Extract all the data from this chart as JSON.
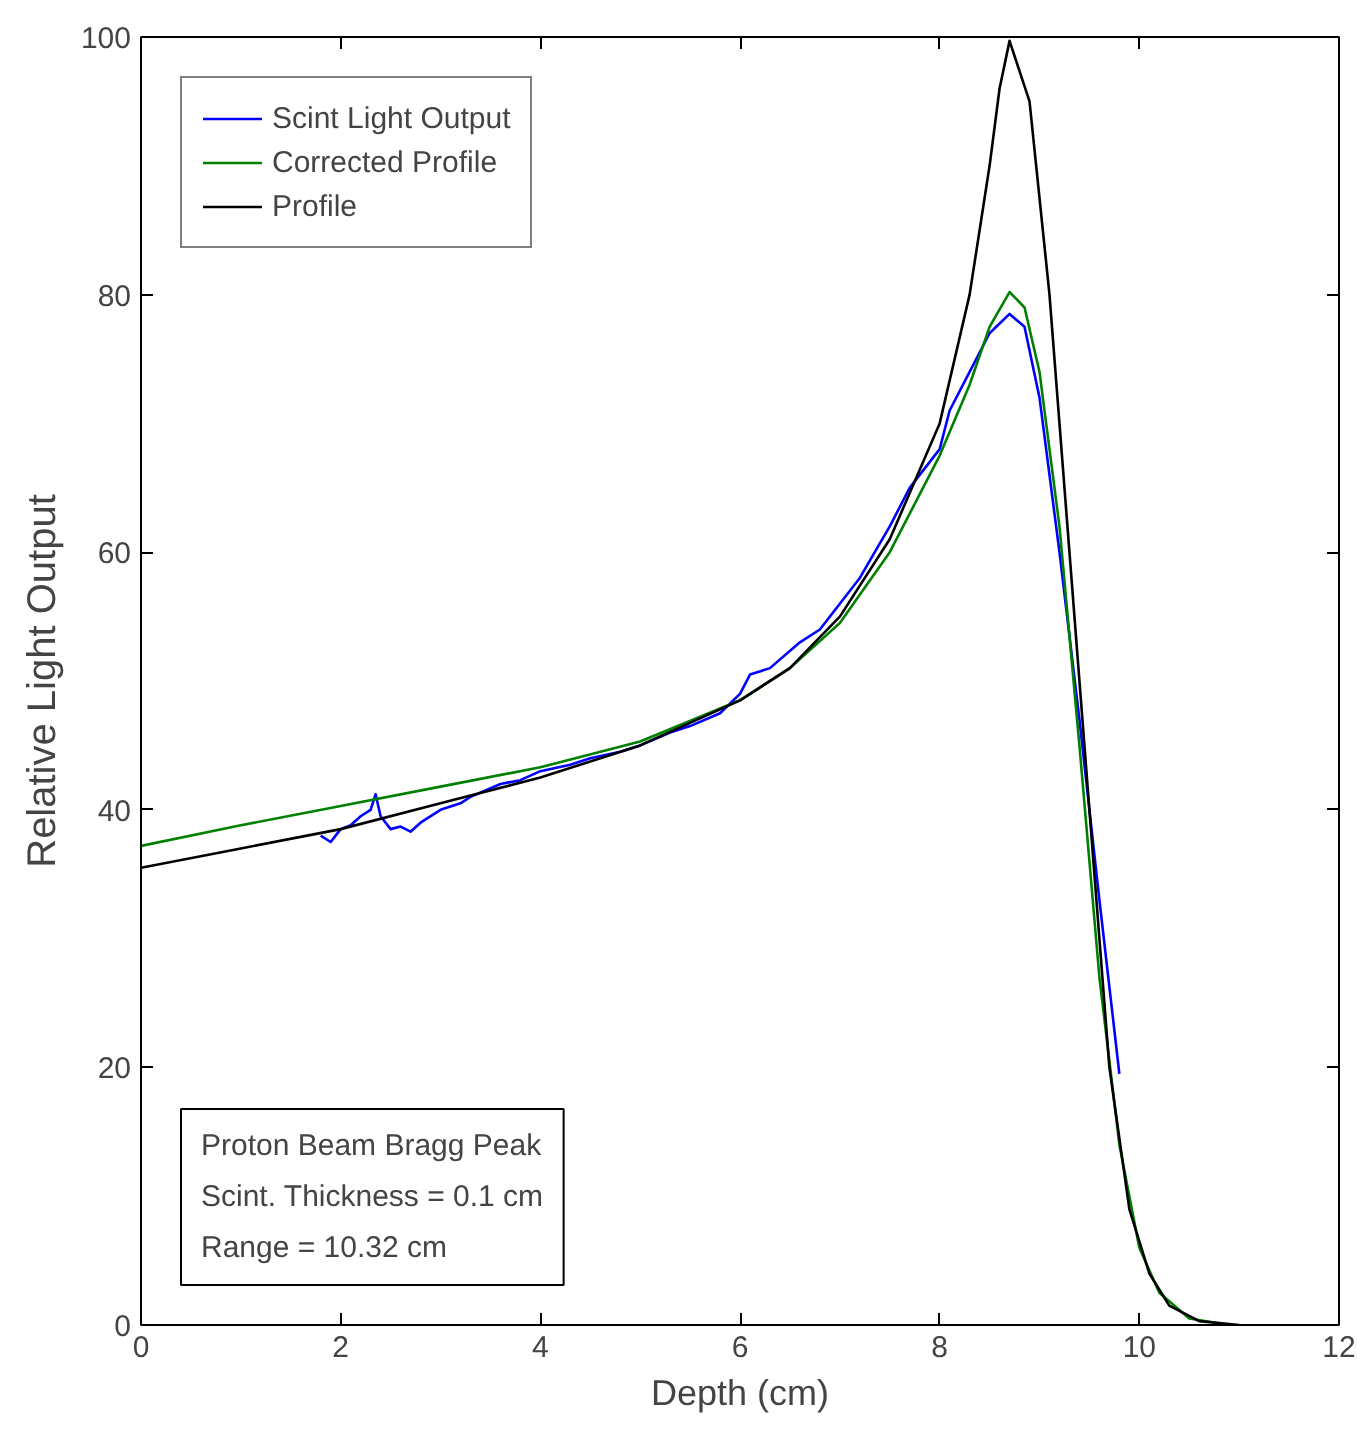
{
  "chart_data": {
    "type": "line",
    "xlabel": "Depth (cm)",
    "ylabel": "Relative Light Output",
    "xlim": [
      0,
      12
    ],
    "ylim": [
      0,
      100
    ],
    "xticks": [
      0,
      2,
      4,
      6,
      8,
      10,
      12
    ],
    "yticks": [
      0,
      20,
      40,
      60,
      80,
      100
    ],
    "grid": false,
    "legend": "top left",
    "line_style": "solid",
    "marker": "none",
    "annotations": [
      "Proton Beam Bragg Peak",
      "Scint. Thickness = 0.1 cm",
      "Range = 10.32 cm"
    ],
    "series": [
      {
        "name": "Scint Light Output",
        "color": "#0000ff",
        "x": [
          1.8,
          1.9,
          2.0,
          2.1,
          2.2,
          2.3,
          2.35,
          2.4,
          2.5,
          2.6,
          2.7,
          2.8,
          3.0,
          3.2,
          3.3,
          3.6,
          3.8,
          4.0,
          4.3,
          4.5,
          4.8,
          5.0,
          5.3,
          5.5,
          5.8,
          6.0,
          6.1,
          6.3,
          6.6,
          6.8,
          7.0,
          7.2,
          7.5,
          7.7,
          7.8,
          8.0,
          8.1,
          8.3,
          8.5,
          8.7,
          8.85,
          9.0,
          9.2,
          9.4,
          9.6,
          9.8
        ],
        "values": [
          38,
          37.5,
          38.5,
          38.8,
          39.5,
          40,
          41.2,
          39.5,
          38.5,
          38.7,
          38.3,
          39,
          40,
          40.5,
          41,
          42,
          42.3,
          43,
          43.5,
          44,
          44.5,
          45,
          46,
          46.5,
          47.5,
          49,
          50.5,
          51,
          53,
          54,
          56,
          58,
          62,
          65,
          66,
          68,
          71,
          74,
          77,
          78.5,
          77.5,
          72,
          60,
          47,
          33,
          19.5
        ]
      },
      {
        "name": "Corrected Profile",
        "color": "#008000",
        "x": [
          0,
          1,
          2,
          3,
          4,
          5,
          6,
          6.5,
          7,
          7.5,
          8,
          8.3,
          8.5,
          8.7,
          8.85,
          9.0,
          9.2,
          9.4,
          9.6,
          9.8,
          10.0,
          10.2,
          10.5,
          10.9
        ],
        "values": [
          37.2,
          38.8,
          40.3,
          41.8,
          43.3,
          45.3,
          48.5,
          51,
          54.5,
          60,
          67.5,
          73,
          77.5,
          80.2,
          79,
          74,
          62,
          45,
          27,
          14,
          6,
          2.5,
          0.5,
          0
        ]
      },
      {
        "name": "Profile",
        "color": "#000000",
        "x": [
          0,
          1,
          2,
          3,
          4,
          5,
          6,
          6.5,
          7,
          7.5,
          8,
          8.3,
          8.5,
          8.6,
          8.7,
          8.9,
          9.1,
          9.3,
          9.5,
          9.7,
          9.9,
          10.1,
          10.3,
          10.6,
          11
        ],
        "values": [
          35.5,
          37,
          38.5,
          40.5,
          42.5,
          45,
          48.5,
          51,
          55,
          61,
          70,
          80,
          90,
          96,
          99.7,
          95,
          80,
          60,
          40,
          20,
          9,
          4,
          1.5,
          0.3,
          0
        ]
      }
    ]
  }
}
